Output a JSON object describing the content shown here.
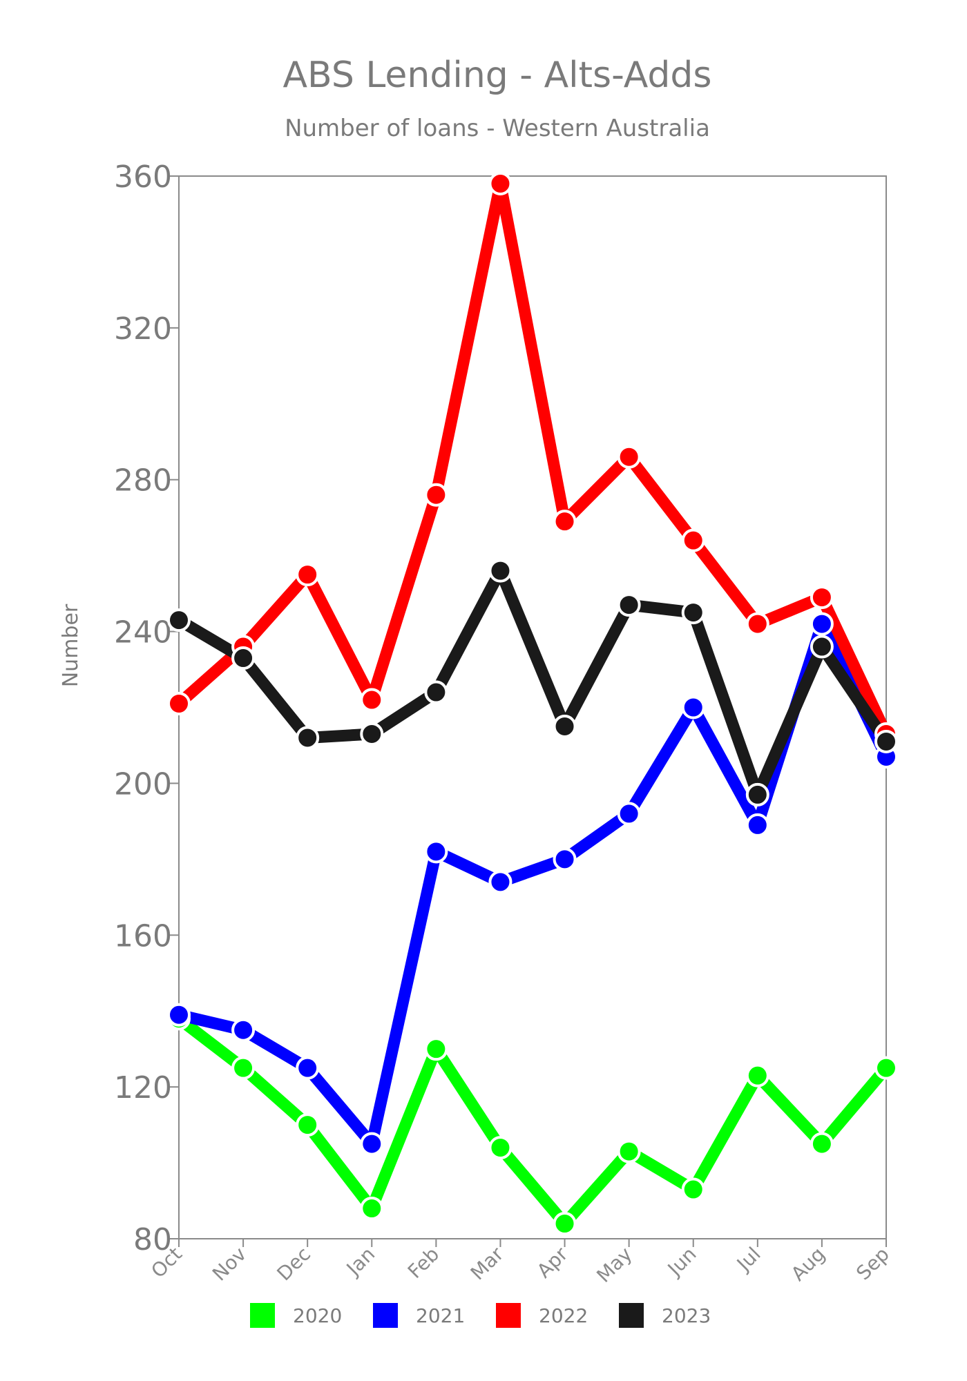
{
  "chart_data": {
    "type": "line",
    "title": "ABS Lending - Alts-Adds",
    "subtitle": "Number of loans - Western Australia",
    "xlabel": "",
    "ylabel": "Number",
    "categories": [
      "Oct",
      "Nov",
      "Dec",
      "Jan",
      "Feb",
      "Mar",
      "Apr",
      "May",
      "Jun",
      "Jul",
      "Aug",
      "Sep"
    ],
    "ylim": [
      80,
      360
    ],
    "yticks": [
      "360",
      "320",
      "280",
      "240",
      "200",
      "160",
      "120",
      "80"
    ],
    "grid": false,
    "legend": "bottom",
    "series": [
      {
        "name": "2020",
        "color": "#00ff00",
        "values": [
          138,
          125,
          110,
          88,
          130,
          104,
          84,
          103,
          93,
          123,
          105,
          125
        ]
      },
      {
        "name": "2021",
        "color": "#0000ff",
        "values": [
          139,
          135,
          125,
          105,
          182,
          174,
          180,
          192,
          220,
          189,
          242,
          207
        ]
      },
      {
        "name": "2022",
        "color": "#ff0000",
        "values": [
          221,
          236,
          255,
          222,
          276,
          358,
          269,
          286,
          264,
          242,
          249,
          213
        ]
      },
      {
        "name": "2023",
        "color": "#1a1a1a",
        "values": [
          243,
          233,
          212,
          213,
          224,
          256,
          215,
          247,
          245,
          197,
          236,
          211
        ]
      }
    ]
  }
}
